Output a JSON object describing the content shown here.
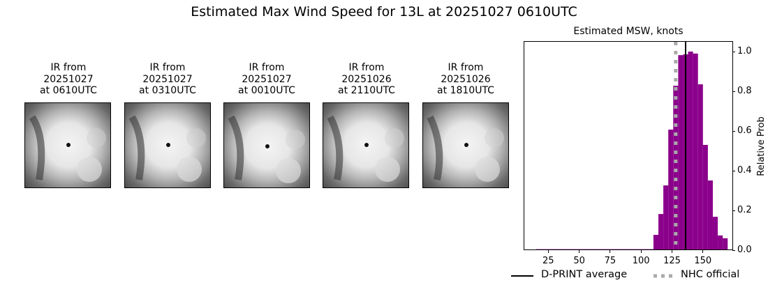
{
  "suptitle": "Estimated Max Wind Speed for 13L at 20251027 0610UTC",
  "ir_panels": [
    {
      "line1": "IR from",
      "line2": "20251027",
      "line3": "at 0610UTC"
    },
    {
      "line1": "IR from",
      "line2": "20251027",
      "line3": "at 0310UTC"
    },
    {
      "line1": "IR from",
      "line2": "20251027",
      "line3": "at 0010UTC"
    },
    {
      "line1": "IR from",
      "line2": "20251026",
      "line3": "at 2110UTC"
    },
    {
      "line1": "IR from",
      "line2": "20251026",
      "line3": "at 1810UTC"
    }
  ],
  "legend": {
    "dprint_label": "D-PRINT average",
    "nhc_label": "NHC official"
  },
  "colors": {
    "bar": "#8b008b",
    "dprint_line": "#000000",
    "nhc_line": "#aaaaaa"
  },
  "chart_data": {
    "type": "bar",
    "title": "Estimated MSW, knots",
    "xlabel": "",
    "ylabel": "Relative Prob",
    "xlim": [
      10,
      175
    ],
    "ylim": [
      0,
      1.05
    ],
    "xticks": [
      25,
      50,
      75,
      100,
      125,
      150
    ],
    "yticks": [
      0.0,
      0.2,
      0.4,
      0.6,
      0.8,
      1.0
    ],
    "ytick_labels": [
      "0.0",
      "0.2",
      "0.4",
      "0.6",
      "0.8",
      "1.0"
    ],
    "y_axis_side": "right",
    "grid": false,
    "bin_width": 4,
    "bins": [
      {
        "x0": 15,
        "x1": 110,
        "value": 0.005
      },
      {
        "x0": 110,
        "x1": 114,
        "value": 0.077
      },
      {
        "x0": 114,
        "x1": 118,
        "value": 0.182
      },
      {
        "x0": 118,
        "x1": 122,
        "value": 0.326
      },
      {
        "x0": 122,
        "x1": 126,
        "value": 0.607
      },
      {
        "x0": 126,
        "x1": 130,
        "value": 0.828
      },
      {
        "x0": 130,
        "x1": 134,
        "value": 0.982
      },
      {
        "x0": 134,
        "x1": 138,
        "value": 0.986
      },
      {
        "x0": 138,
        "x1": 142,
        "value": 1.0
      },
      {
        "x0": 142,
        "x1": 146,
        "value": 0.99
      },
      {
        "x0": 146,
        "x1": 150,
        "value": 0.835
      },
      {
        "x0": 150,
        "x1": 154,
        "value": 0.53
      },
      {
        "x0": 154,
        "x1": 158,
        "value": 0.351
      },
      {
        "x0": 158,
        "x1": 162,
        "value": 0.168
      },
      {
        "x0": 162,
        "x1": 166,
        "value": 0.074
      },
      {
        "x0": 166,
        "x1": 170,
        "value": 0.06
      }
    ],
    "vlines": [
      {
        "name": "D-PRINT average",
        "x": 136,
        "style": "solid",
        "color": "#000000"
      },
      {
        "name": "NHC official",
        "x": 128,
        "style": "dotted",
        "color": "#aaaaaa"
      }
    ],
    "legend_position": "bottom"
  }
}
